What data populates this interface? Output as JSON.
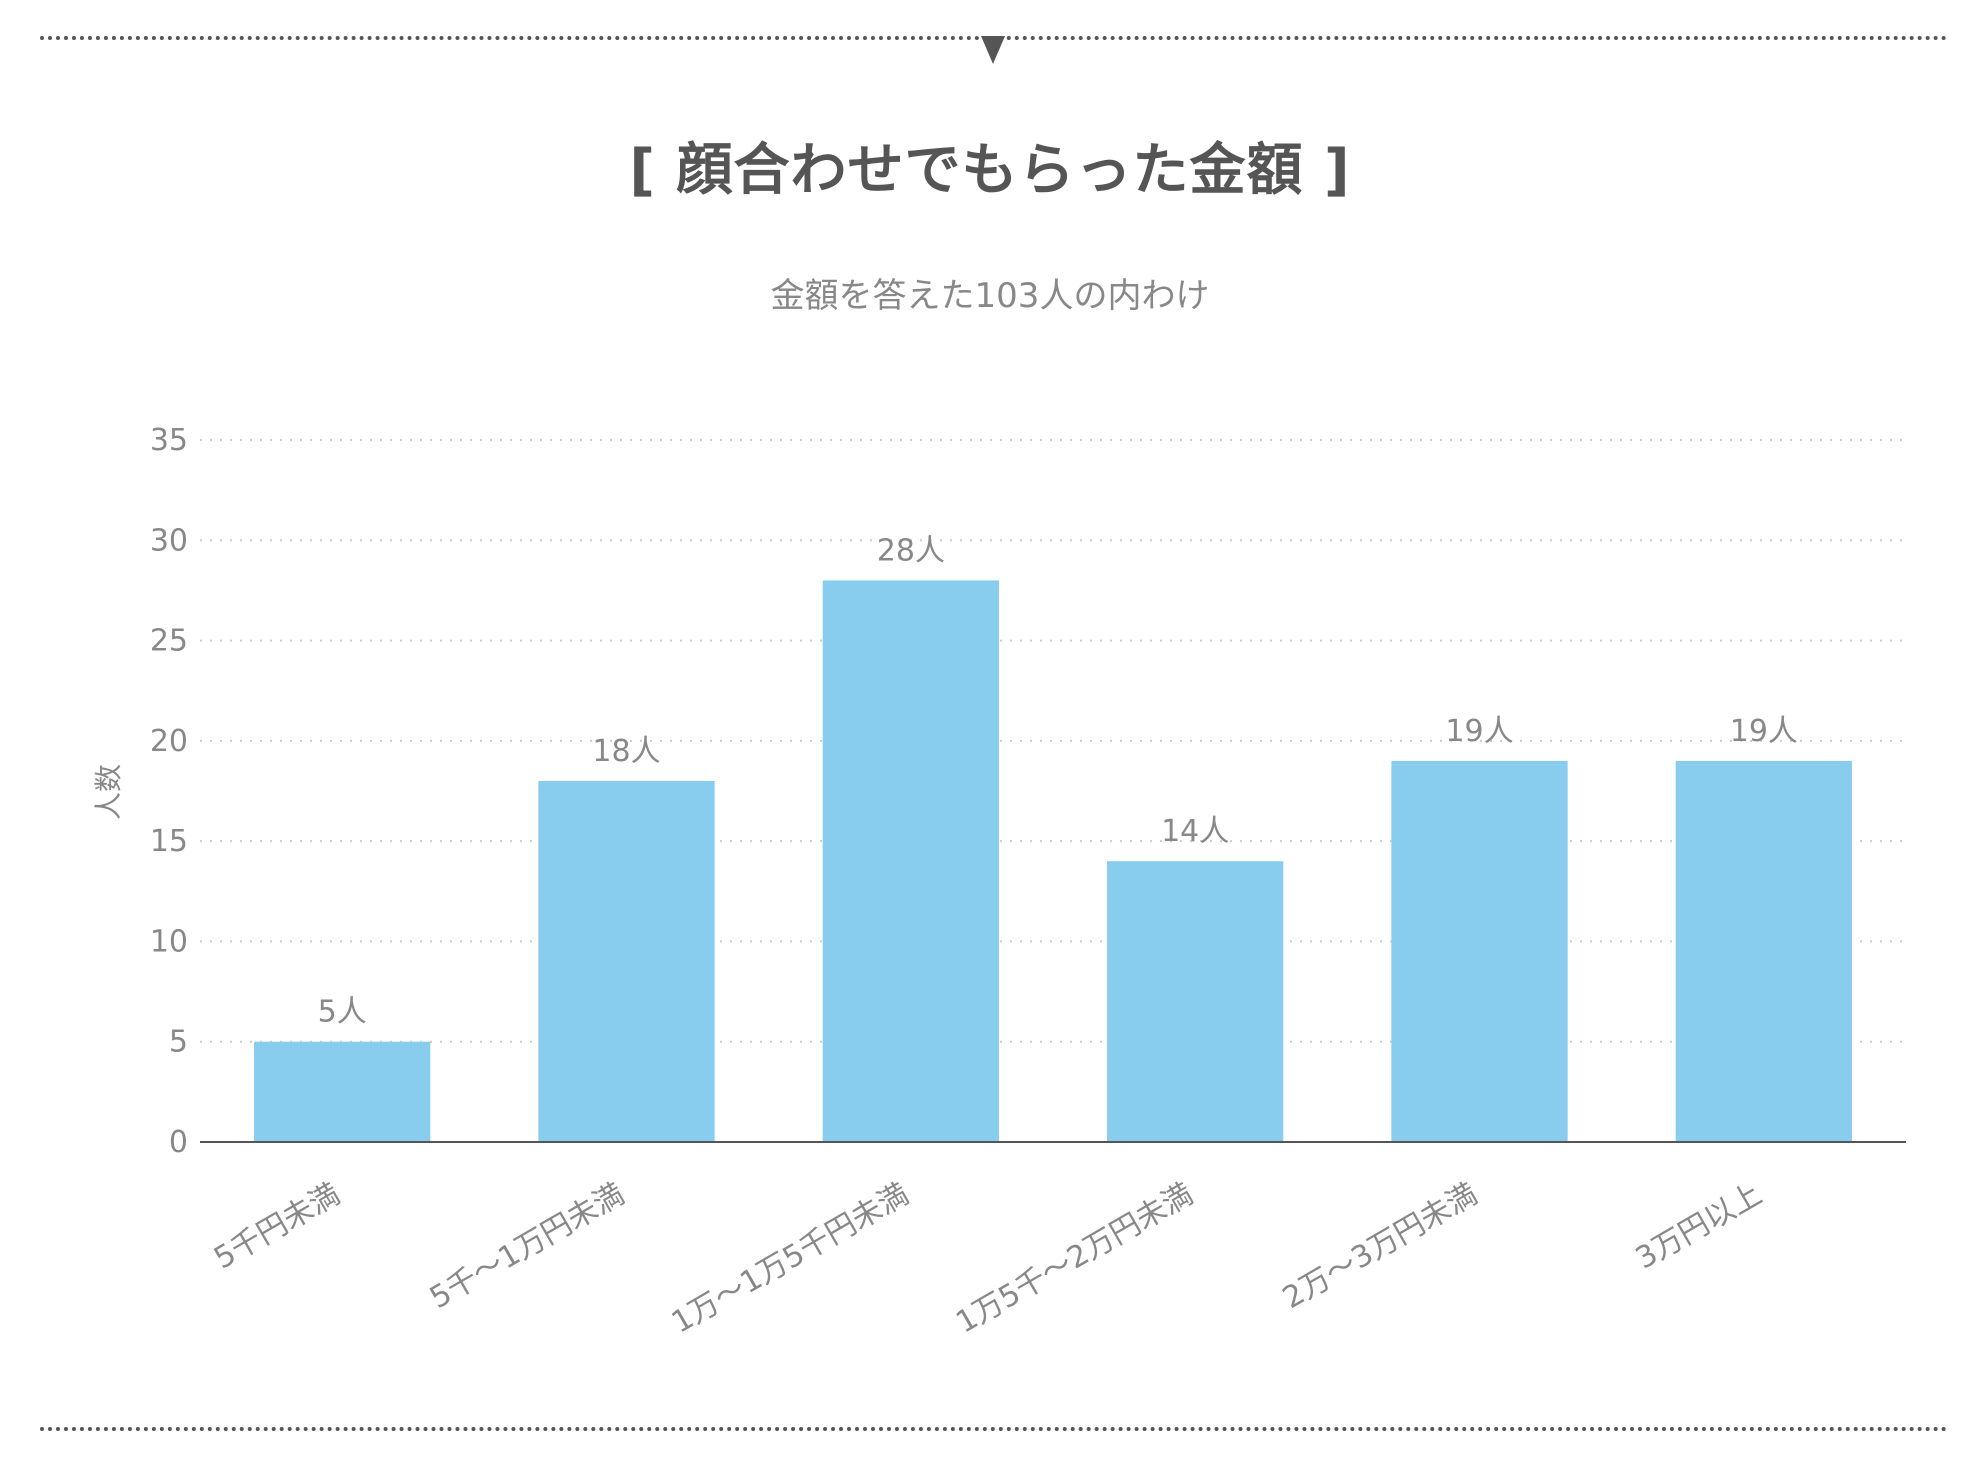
{
  "title": "[ 顔合わせでもらった金額 ]",
  "subtitle": "金額を答えた103人の内わけ",
  "colors": {
    "bar": "#89CDEE",
    "text": "#555555",
    "muted": "#888888",
    "grid": "#cccccc",
    "axis": "#555555"
  },
  "chart_data": {
    "type": "bar",
    "categories": [
      "5千円未満",
      "5千〜1万円未満",
      "1万〜1万5千円未満",
      "1万5千〜2万円未満",
      "2万〜3万円未満",
      "3万円以上"
    ],
    "values": [
      5,
      18,
      28,
      14,
      19,
      19
    ],
    "data_labels": [
      "5人",
      "18人",
      "28人",
      "14人",
      "19人",
      "19人"
    ],
    "ylabel": "人数",
    "xlabel": "",
    "ylim": [
      0,
      35
    ],
    "yticks": [
      0,
      5,
      10,
      15,
      20,
      25,
      30,
      35
    ],
    "grid": true,
    "x_tick_rotation_deg": -30
  }
}
